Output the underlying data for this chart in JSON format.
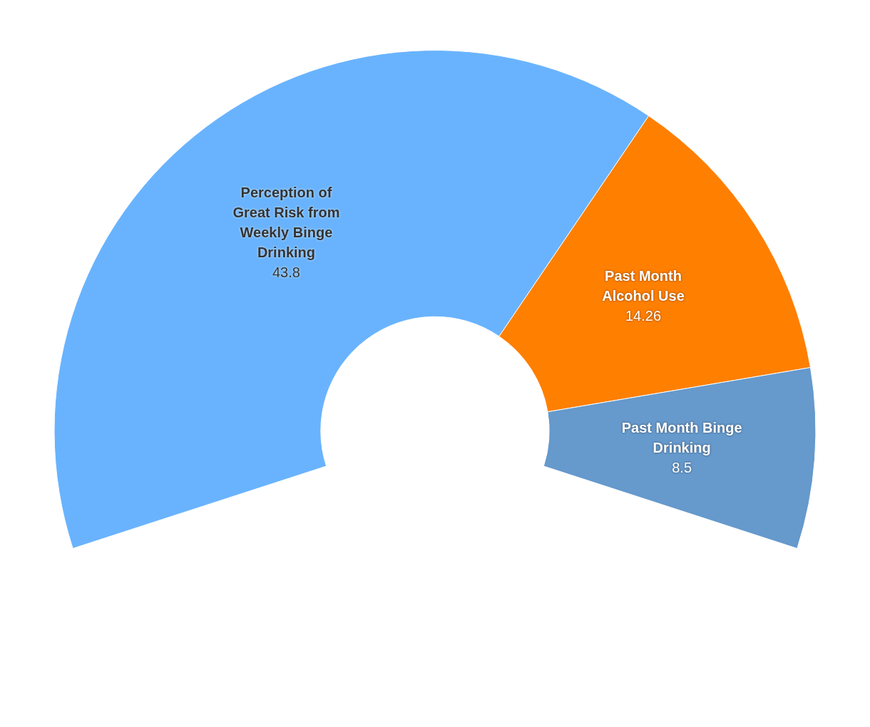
{
  "chart_data": {
    "type": "donut",
    "categories": [
      "Perception of Great Risk from Weekly Binge Drinking",
      "Past Month Alcohol Use",
      "Past Month Binge Drinking"
    ],
    "values": [
      43.8,
      14.26,
      8.5
    ],
    "colors": [
      "#69b3fe",
      "#ff7f00",
      "#6699cc"
    ],
    "data_labels": true,
    "legend": false
  }
}
